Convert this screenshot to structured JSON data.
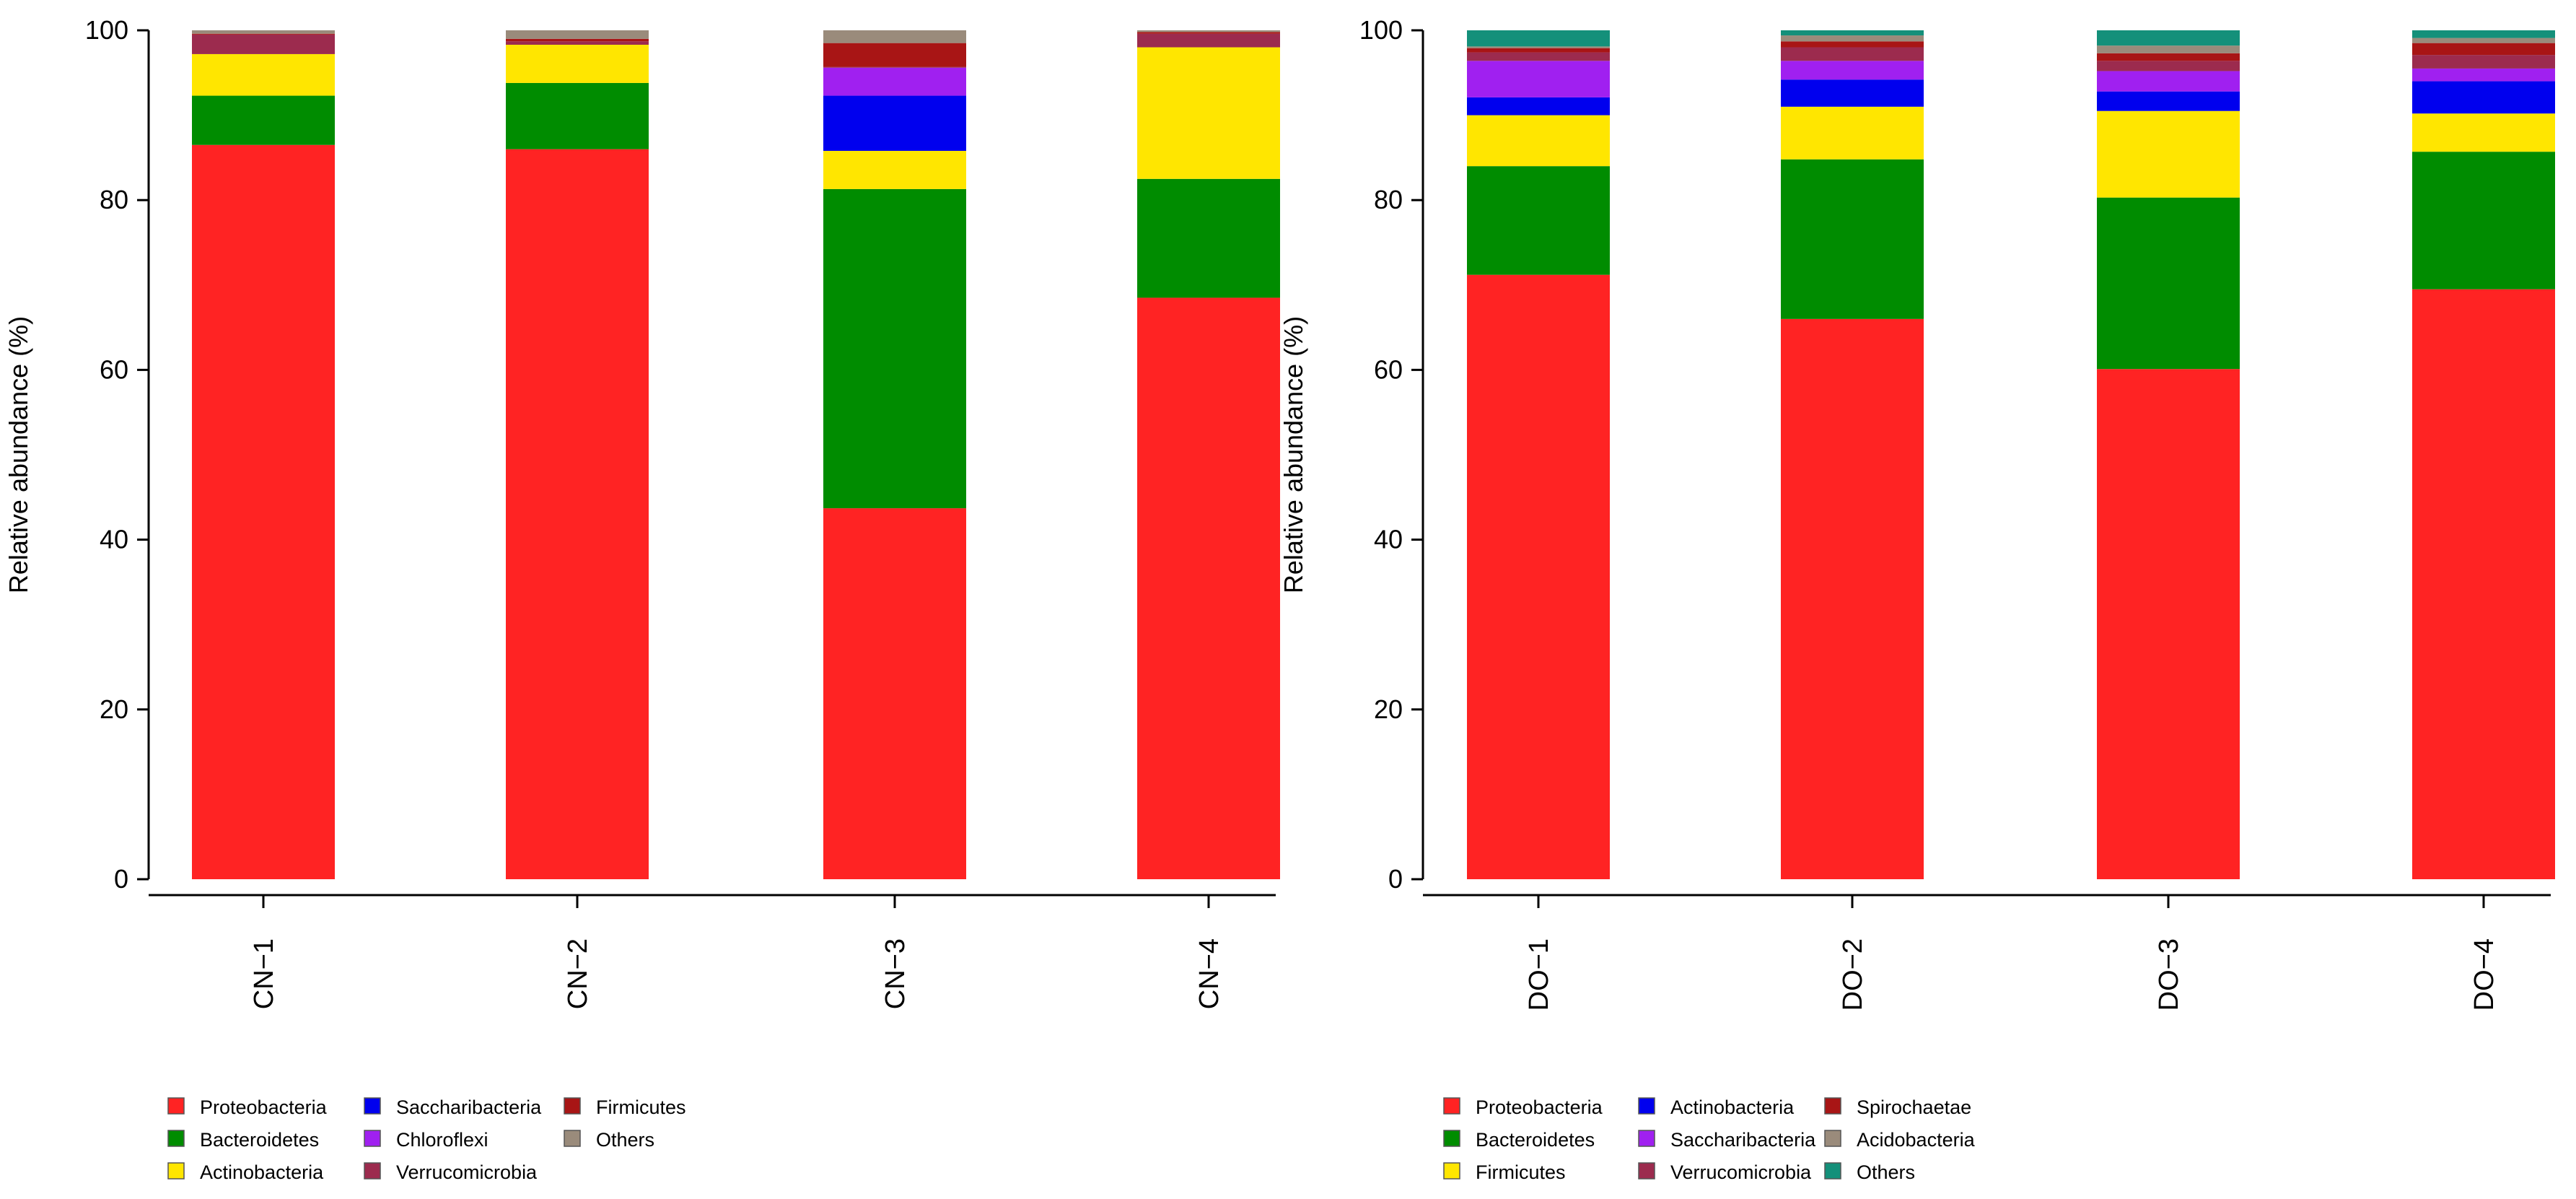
{
  "chart_data": [
    {
      "type": "bar",
      "stacked": true,
      "ylabel": "Relative abundance (%)",
      "ylim": [
        0,
        100
      ],
      "yticks": [
        "0",
        "20",
        "40",
        "60",
        "80",
        "100"
      ],
      "categories": [
        "CN−1",
        "CN−2",
        "CN−3",
        "CN−4"
      ],
      "legend_position": "bottom",
      "series": [
        {
          "name": "Proteobacteria",
          "color": "#ff2323",
          "values": [
            86.5,
            86.0,
            43.7,
            68.5
          ]
        },
        {
          "name": "Bacteroidetes",
          "color": "#008c00",
          "values": [
            5.8,
            7.8,
            37.6,
            14.0
          ]
        },
        {
          "name": "Actinobacteria",
          "color": "#ffe600",
          "values": [
            4.9,
            4.5,
            4.5,
            15.5
          ]
        },
        {
          "name": "Saccharibacteria",
          "color": "#0000ee",
          "values": [
            0.0,
            0.0,
            6.5,
            0.0
          ]
        },
        {
          "name": "Chloroflexi",
          "color": "#a020f0",
          "values": [
            0.0,
            0.0,
            3.3,
            0.0
          ]
        },
        {
          "name": "Verrucomicrobia",
          "color": "#9c2b4e",
          "values": [
            2.3,
            0.4,
            0.1,
            1.6
          ]
        },
        {
          "name": "Firmicutes",
          "color": "#a81515",
          "values": [
            0.1,
            0.3,
            2.8,
            0.2
          ]
        },
        {
          "name": "Others",
          "color": "#9a8b7b",
          "values": [
            0.4,
            1.0,
            1.5,
            0.2
          ]
        }
      ]
    },
    {
      "type": "bar",
      "stacked": true,
      "ylabel": "Relative abundance (%)",
      "ylim": [
        0,
        100
      ],
      "yticks": [
        "0",
        "20",
        "40",
        "60",
        "80",
        "100"
      ],
      "categories": [
        "DO−1",
        "DO−2",
        "DO−3",
        "DO−4"
      ],
      "legend_position": "bottom",
      "series": [
        {
          "name": "Proteobacteria",
          "color": "#ff2323",
          "values": [
            71.2,
            66.0,
            60.1,
            69.5
          ]
        },
        {
          "name": "Bacteroidetes",
          "color": "#008c00",
          "values": [
            12.8,
            18.8,
            20.2,
            16.2
          ]
        },
        {
          "name": "Firmicutes",
          "color": "#ffe600",
          "values": [
            6.0,
            6.2,
            10.2,
            4.5
          ]
        },
        {
          "name": "Actinobacteria",
          "color": "#0000ee",
          "values": [
            2.1,
            3.2,
            2.3,
            3.8
          ]
        },
        {
          "name": "Saccharibacteria",
          "color": "#a020f0",
          "values": [
            4.3,
            2.2,
            2.4,
            1.5
          ]
        },
        {
          "name": "Verrucomicrobia",
          "color": "#9c2b4e",
          "values": [
            1.0,
            1.6,
            1.2,
            1.6
          ]
        },
        {
          "name": "Spirochaetae",
          "color": "#a81515",
          "values": [
            0.5,
            0.7,
            0.9,
            1.4
          ]
        },
        {
          "name": "Acidobacteria",
          "color": "#9a8b7b",
          "values": [
            0.2,
            0.7,
            0.9,
            0.6
          ]
        },
        {
          "name": "Others",
          "color": "#14907a",
          "values": [
            1.9,
            0.6,
            1.8,
            0.9
          ]
        }
      ]
    }
  ]
}
